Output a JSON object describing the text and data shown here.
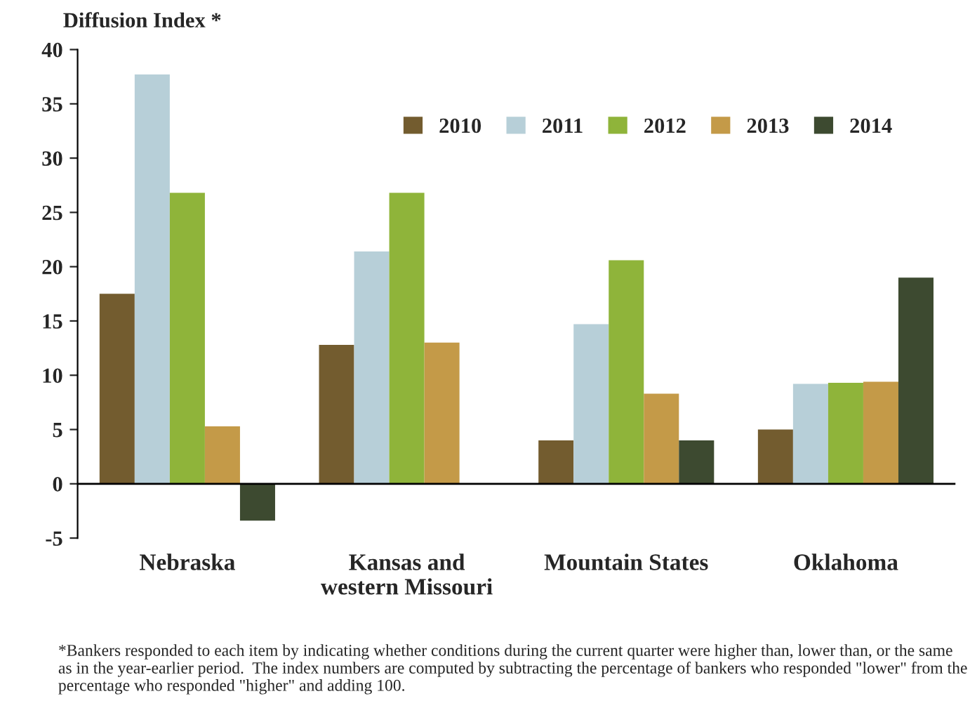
{
  "chart_data": {
    "type": "bar",
    "ylabel": "Diffusion Index *",
    "categories": [
      "Nebraska",
      "Kansas and\nwestern Missouri",
      "Mountain States",
      "Oklahoma"
    ],
    "series": [
      {
        "name": "2010",
        "color": "#735c2f",
        "values": [
          17.5,
          12.8,
          4.0,
          5.0
        ]
      },
      {
        "name": "2011",
        "color": "#b7cfd8",
        "values": [
          37.7,
          21.4,
          14.7,
          9.2
        ]
      },
      {
        "name": "2012",
        "color": "#8fb43a",
        "values": [
          26.8,
          26.8,
          20.6,
          9.3
        ]
      },
      {
        "name": "2013",
        "color": "#c49a48",
        "values": [
          5.3,
          13.0,
          8.3,
          9.4
        ]
      },
      {
        "name": "2014",
        "color": "#3d4a30",
        "values": [
          -3.4,
          null,
          4.0,
          19.0
        ]
      }
    ],
    "ylim": [
      -5,
      40
    ],
    "yticks": [
      -5,
      0,
      5,
      10,
      15,
      20,
      25,
      30,
      35,
      40
    ],
    "ref_lines": [
      {
        "axis": "y",
        "value": 0,
        "color": "#000000"
      }
    ],
    "legend": "top right",
    "grid": false,
    "annotations": [
      "*Bankers responded to each item by indicating whether conditions during the current quarter were higher than, lower than, or the same as in the year-earlier period.  The index numbers are computed by subtracting the percentage of bankers who responded \"lower\" from the percentage who responded \"higher\" and adding 100."
    ]
  }
}
